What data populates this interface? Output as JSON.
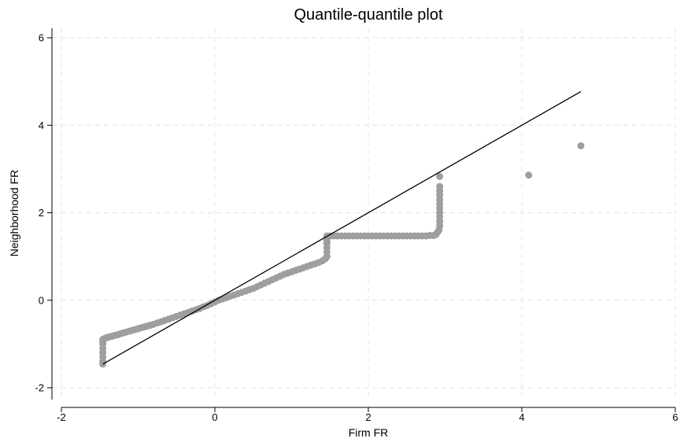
{
  "chart_data": {
    "type": "scatter",
    "title": "Quantile-quantile plot",
    "xlabel": "Firm FR",
    "ylabel": "Neighborhood FR",
    "xlim": [
      -2,
      6
    ],
    "ylim": [
      -2,
      6
    ],
    "xticks": [
      -2,
      0,
      2,
      4,
      6
    ],
    "yticks": [
      -2,
      0,
      2,
      4,
      6
    ],
    "grid": true,
    "colors": {
      "points": "#9e9e9e",
      "reference_line": "#000000",
      "grid": "#e4e4e4"
    },
    "series": [
      {
        "type": "scatter",
        "x": [
          -1.46,
          -1.46,
          -1.46,
          -1.46,
          -1.46,
          -1.46,
          -1.46,
          -1.46,
          -1.46,
          -1.45,
          -1.44,
          -1.43,
          -1.42,
          -1.4,
          -1.38,
          -1.35,
          -1.33,
          -1.3,
          -1.27,
          -1.24,
          -1.2,
          -1.16,
          -1.12,
          -1.08,
          -1.04,
          -1.0,
          -0.96,
          -0.92,
          -0.88,
          -0.84,
          -0.8,
          -0.75,
          -0.7,
          -0.65,
          -0.6,
          -0.55,
          -0.5,
          -0.45,
          -0.4,
          -0.35,
          -0.3,
          -0.25,
          -0.2,
          -0.15,
          -0.1,
          -0.05,
          0.0,
          0.05,
          0.1,
          0.15,
          0.2,
          0.25,
          0.3,
          0.35,
          0.4,
          0.45,
          0.5,
          0.55,
          0.6,
          0.65,
          0.7,
          0.75,
          0.8,
          0.85,
          0.9,
          0.95,
          1.0,
          1.05,
          1.1,
          1.15,
          1.2,
          1.25,
          1.3,
          1.35,
          1.4,
          1.44,
          1.46,
          1.46,
          1.46,
          1.46,
          1.46,
          1.46,
          1.46,
          1.46,
          1.5,
          1.55,
          1.6,
          1.65,
          1.7,
          1.75,
          1.8,
          1.85,
          1.9,
          1.95,
          2.0,
          2.05,
          2.1,
          2.15,
          2.2,
          2.25,
          2.3,
          2.35,
          2.4,
          2.45,
          2.5,
          2.55,
          2.6,
          2.65,
          2.7,
          2.75,
          2.8,
          2.85,
          2.88,
          2.9,
          2.92,
          2.93,
          2.93,
          2.93,
          2.93,
          2.93,
          2.93,
          2.93,
          2.93,
          2.93,
          2.93,
          2.93,
          4.09,
          4.77
        ],
        "y": [
          -1.46,
          -1.4,
          -1.3,
          -1.2,
          -1.1,
          -1.0,
          -0.95,
          -0.92,
          -0.9,
          -0.89,
          -0.88,
          -0.87,
          -0.86,
          -0.85,
          -0.84,
          -0.83,
          -0.82,
          -0.8,
          -0.79,
          -0.77,
          -0.75,
          -0.73,
          -0.71,
          -0.69,
          -0.67,
          -0.65,
          -0.63,
          -0.61,
          -0.59,
          -0.57,
          -0.55,
          -0.52,
          -0.49,
          -0.46,
          -0.43,
          -0.4,
          -0.37,
          -0.34,
          -0.31,
          -0.28,
          -0.25,
          -0.22,
          -0.19,
          -0.15,
          -0.12,
          -0.08,
          -0.04,
          0.0,
          0.03,
          0.06,
          0.09,
          0.12,
          0.15,
          0.18,
          0.21,
          0.24,
          0.27,
          0.31,
          0.35,
          0.39,
          0.43,
          0.47,
          0.51,
          0.55,
          0.59,
          0.62,
          0.65,
          0.68,
          0.71,
          0.74,
          0.77,
          0.8,
          0.83,
          0.86,
          0.9,
          0.95,
          1.0,
          1.1,
          1.2,
          1.3,
          1.35,
          1.4,
          1.45,
          1.47,
          1.47,
          1.47,
          1.47,
          1.47,
          1.47,
          1.47,
          1.47,
          1.47,
          1.47,
          1.47,
          1.47,
          1.47,
          1.47,
          1.47,
          1.47,
          1.47,
          1.47,
          1.47,
          1.47,
          1.47,
          1.47,
          1.47,
          1.47,
          1.47,
          1.47,
          1.47,
          1.48,
          1.48,
          1.5,
          1.55,
          1.6,
          1.7,
          1.8,
          1.9,
          2.0,
          2.1,
          2.2,
          2.3,
          2.4,
          2.5,
          2.6,
          2.83,
          2.86,
          3.53
        ]
      },
      {
        "type": "line",
        "x": [
          -1.46,
          4.77
        ],
        "y": [
          -1.46,
          4.77
        ]
      }
    ]
  }
}
